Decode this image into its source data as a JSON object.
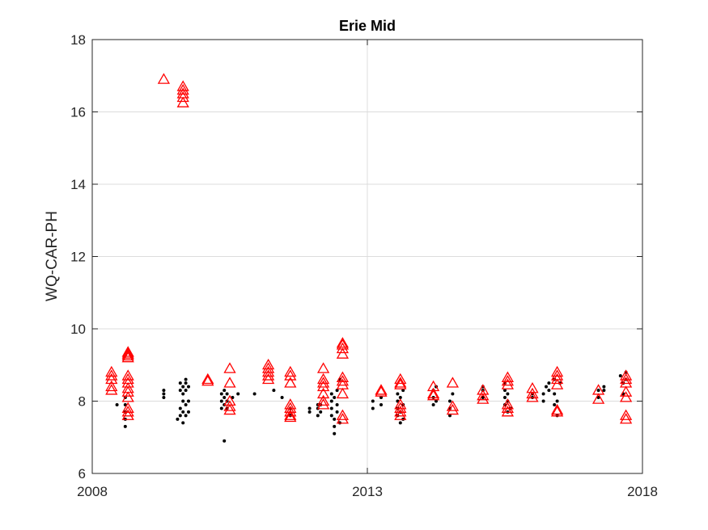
{
  "chart_data": {
    "type": "scatter",
    "title": "Erie Mid",
    "xlabel": "",
    "ylabel": "WQ-CAR-PH",
    "xlim": [
      2008,
      2018
    ],
    "ylim": [
      6,
      18
    ],
    "xticks": [
      "2008",
      "2013",
      "2018"
    ],
    "yticks": [
      "6",
      "8",
      "10",
      "12",
      "14",
      "16",
      "18"
    ],
    "grid": true,
    "colors": {
      "dots": "#000000",
      "triangles": "#ff0000",
      "grid": "#dcdcdc",
      "axis": "#262626"
    },
    "series": [
      {
        "marker": "dot",
        "points": [
          [
            2008.45,
            7.9
          ],
          [
            2008.6,
            7.3
          ],
          [
            2008.6,
            7.5
          ],
          [
            2008.6,
            7.7
          ],
          [
            2008.6,
            7.9
          ],
          [
            2008.6,
            8.1
          ],
          [
            2009.3,
            8.1
          ],
          [
            2009.3,
            8.2
          ],
          [
            2009.3,
            8.3
          ],
          [
            2009.55,
            7.5
          ],
          [
            2009.6,
            7.6
          ],
          [
            2009.6,
            7.8
          ],
          [
            2009.65,
            7.4
          ],
          [
            2009.65,
            7.7
          ],
          [
            2009.65,
            8.0
          ],
          [
            2009.65,
            8.2
          ],
          [
            2009.65,
            8.4
          ],
          [
            2009.7,
            8.6
          ],
          [
            2009.7,
            8.5
          ],
          [
            2009.7,
            8.3
          ],
          [
            2009.7,
            7.9
          ],
          [
            2009.7,
            7.6
          ],
          [
            2009.75,
            8.0
          ],
          [
            2009.75,
            7.7
          ],
          [
            2009.75,
            8.4
          ],
          [
            2009.6,
            8.5
          ],
          [
            2009.6,
            8.3
          ],
          [
            2010.35,
            8.2
          ],
          [
            2010.35,
            8.0
          ],
          [
            2010.35,
            7.8
          ],
          [
            2010.4,
            8.3
          ],
          [
            2010.4,
            8.1
          ],
          [
            2010.4,
            7.9
          ],
          [
            2010.45,
            7.8
          ],
          [
            2010.45,
            8.2
          ],
          [
            2010.45,
            8.0
          ],
          [
            2010.4,
            6.9
          ],
          [
            2010.55,
            8.1
          ],
          [
            2010.65,
            8.2
          ],
          [
            2010.95,
            8.2
          ],
          [
            2011.3,
            8.3
          ],
          [
            2011.45,
            8.1
          ],
          [
            2011.6,
            7.6
          ],
          [
            2011.6,
            7.8
          ],
          [
            2011.95,
            7.8
          ],
          [
            2011.95,
            7.7
          ],
          [
            2012.1,
            7.9
          ],
          [
            2012.1,
            7.6
          ],
          [
            2012.1,
            7.8
          ],
          [
            2012.15,
            7.7
          ],
          [
            2012.15,
            7.9
          ],
          [
            2012.35,
            7.8
          ],
          [
            2012.35,
            8.0
          ],
          [
            2012.35,
            8.2
          ],
          [
            2012.35,
            7.6
          ],
          [
            2012.4,
            7.5
          ],
          [
            2012.4,
            7.3
          ],
          [
            2012.4,
            7.1
          ],
          [
            2012.4,
            8.1
          ],
          [
            2012.45,
            7.9
          ],
          [
            2012.45,
            7.7
          ],
          [
            2012.45,
            8.3
          ],
          [
            2012.5,
            8.6
          ],
          [
            2012.5,
            7.4
          ],
          [
            2013.1,
            7.8
          ],
          [
            2013.1,
            8.0
          ],
          [
            2013.25,
            7.9
          ],
          [
            2013.25,
            8.1
          ],
          [
            2013.55,
            8.2
          ],
          [
            2013.55,
            8.0
          ],
          [
            2013.55,
            7.8
          ],
          [
            2013.55,
            7.6
          ],
          [
            2013.6,
            7.4
          ],
          [
            2013.6,
            7.7
          ],
          [
            2013.6,
            8.1
          ],
          [
            2013.65,
            7.9
          ],
          [
            2013.65,
            8.3
          ],
          [
            2013.65,
            7.5
          ],
          [
            2014.2,
            8.1
          ],
          [
            2014.2,
            8.3
          ],
          [
            2014.2,
            7.9
          ],
          [
            2014.25,
            8.0
          ],
          [
            2014.25,
            8.4
          ],
          [
            2014.5,
            7.6
          ],
          [
            2014.5,
            7.8
          ],
          [
            2014.5,
            8.0
          ],
          [
            2014.55,
            8.2
          ],
          [
            2015.1,
            8.1
          ],
          [
            2015.1,
            8.3
          ],
          [
            2015.1,
            8.4
          ],
          [
            2015.5,
            8.5
          ],
          [
            2015.5,
            8.3
          ],
          [
            2015.5,
            8.1
          ],
          [
            2015.5,
            7.9
          ],
          [
            2015.55,
            7.7
          ],
          [
            2015.55,
            8.2
          ],
          [
            2015.55,
            8.0
          ],
          [
            2015.6,
            7.8
          ],
          [
            2016.0,
            8.2
          ],
          [
            2016.0,
            8.1
          ],
          [
            2016.2,
            8.0
          ],
          [
            2016.2,
            8.2
          ],
          [
            2016.25,
            8.4
          ],
          [
            2016.3,
            8.5
          ],
          [
            2016.3,
            8.3
          ],
          [
            2016.4,
            8.6
          ],
          [
            2016.4,
            8.2
          ],
          [
            2016.4,
            7.9
          ],
          [
            2016.45,
            7.6
          ],
          [
            2016.45,
            8.0
          ],
          [
            2016.5,
            8.5
          ],
          [
            2017.2,
            8.1
          ],
          [
            2017.2,
            8.3
          ],
          [
            2017.3,
            8.3
          ],
          [
            2017.3,
            8.4
          ],
          [
            2017.6,
            8.7
          ],
          [
            2017.65,
            8.5
          ],
          [
            2017.65,
            8.2
          ],
          [
            2017.7,
            8.6
          ],
          [
            2017.7,
            8.8
          ]
        ]
      },
      {
        "marker": "triangle",
        "points": [
          [
            2008.35,
            8.8
          ],
          [
            2008.35,
            8.7
          ],
          [
            2008.35,
            8.6
          ],
          [
            2008.35,
            8.4
          ],
          [
            2008.35,
            8.3
          ],
          [
            2008.65,
            9.35
          ],
          [
            2008.65,
            9.3
          ],
          [
            2008.65,
            9.25
          ],
          [
            2008.65,
            9.2
          ],
          [
            2008.65,
            8.7
          ],
          [
            2008.65,
            8.6
          ],
          [
            2008.65,
            8.5
          ],
          [
            2008.65,
            8.35
          ],
          [
            2008.65,
            8.25
          ],
          [
            2008.65,
            8.1
          ],
          [
            2008.65,
            7.8
          ],
          [
            2008.65,
            7.7
          ],
          [
            2008.65,
            7.6
          ],
          [
            2009.3,
            16.9
          ],
          [
            2009.65,
            16.7
          ],
          [
            2009.65,
            16.6
          ],
          [
            2009.65,
            16.5
          ],
          [
            2009.65,
            16.4
          ],
          [
            2009.65,
            16.25
          ],
          [
            2010.1,
            8.6
          ],
          [
            2010.1,
            8.55
          ],
          [
            2010.5,
            8.9
          ],
          [
            2010.5,
            8.5
          ],
          [
            2010.5,
            8.0
          ],
          [
            2010.5,
            7.85
          ],
          [
            2010.5,
            7.75
          ],
          [
            2011.2,
            9.0
          ],
          [
            2011.2,
            8.9
          ],
          [
            2011.2,
            8.8
          ],
          [
            2011.2,
            8.7
          ],
          [
            2011.2,
            8.6
          ],
          [
            2011.6,
            8.8
          ],
          [
            2011.6,
            8.7
          ],
          [
            2011.6,
            8.5
          ],
          [
            2011.6,
            7.9
          ],
          [
            2011.6,
            7.8
          ],
          [
            2011.6,
            7.7
          ],
          [
            2011.6,
            7.6
          ],
          [
            2011.6,
            7.55
          ],
          [
            2012.2,
            8.9
          ],
          [
            2012.2,
            8.6
          ],
          [
            2012.2,
            8.5
          ],
          [
            2012.2,
            8.4
          ],
          [
            2012.2,
            8.2
          ],
          [
            2012.2,
            8.0
          ],
          [
            2012.2,
            7.9
          ],
          [
            2012.55,
            9.6
          ],
          [
            2012.55,
            9.55
          ],
          [
            2012.55,
            9.45
          ],
          [
            2012.55,
            9.3
          ],
          [
            2012.55,
            8.65
          ],
          [
            2012.55,
            8.55
          ],
          [
            2012.55,
            8.45
          ],
          [
            2012.55,
            8.2
          ],
          [
            2012.55,
            7.6
          ],
          [
            2012.55,
            7.5
          ],
          [
            2013.25,
            8.3
          ],
          [
            2013.25,
            8.25
          ],
          [
            2013.6,
            8.6
          ],
          [
            2013.6,
            8.5
          ],
          [
            2013.6,
            8.45
          ],
          [
            2013.6,
            7.9
          ],
          [
            2013.6,
            7.8
          ],
          [
            2013.6,
            7.7
          ],
          [
            2013.6,
            7.6
          ],
          [
            2014.2,
            8.4
          ],
          [
            2014.2,
            8.2
          ],
          [
            2014.2,
            8.15
          ],
          [
            2014.55,
            8.5
          ],
          [
            2014.55,
            7.85
          ],
          [
            2014.55,
            7.75
          ],
          [
            2015.1,
            8.3
          ],
          [
            2015.1,
            8.15
          ],
          [
            2015.1,
            8.05
          ],
          [
            2015.55,
            8.65
          ],
          [
            2015.55,
            8.55
          ],
          [
            2015.55,
            8.45
          ],
          [
            2015.55,
            7.9
          ],
          [
            2015.55,
            7.8
          ],
          [
            2015.55,
            7.7
          ],
          [
            2016.0,
            8.35
          ],
          [
            2016.0,
            8.2
          ],
          [
            2016.0,
            8.1
          ],
          [
            2016.45,
            8.8
          ],
          [
            2016.45,
            8.7
          ],
          [
            2016.45,
            8.6
          ],
          [
            2016.45,
            8.45
          ],
          [
            2016.45,
            7.75
          ],
          [
            2016.45,
            7.7
          ],
          [
            2017.2,
            8.3
          ],
          [
            2017.2,
            8.05
          ],
          [
            2017.7,
            8.7
          ],
          [
            2017.7,
            8.6
          ],
          [
            2017.7,
            8.5
          ],
          [
            2017.7,
            8.25
          ],
          [
            2017.7,
            8.1
          ],
          [
            2017.7,
            7.6
          ],
          [
            2017.7,
            7.5
          ]
        ]
      }
    ]
  }
}
